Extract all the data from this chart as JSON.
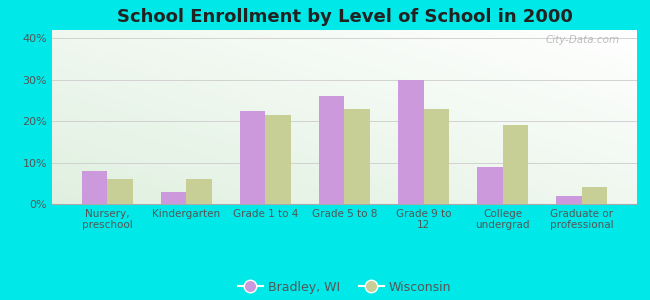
{
  "title": "School Enrollment by Level of School in 2000",
  "categories": [
    "Nursery,\npreschool",
    "Kindergarten",
    "Grade 1 to 4",
    "Grade 5 to 8",
    "Grade 9 to\n12",
    "College\nundergrad",
    "Graduate or\nprofessional"
  ],
  "bradley": [
    8.0,
    3.0,
    22.5,
    26.0,
    30.0,
    9.0,
    2.0
  ],
  "wisconsin": [
    6.0,
    6.0,
    21.5,
    23.0,
    23.0,
    19.0,
    4.0
  ],
  "bradley_color": "#cc99dd",
  "wisconsin_color": "#c8cf96",
  "background_color": "#00e8e8",
  "title_color": "#222222",
  "tick_color": "#555555",
  "grid_color": "#cccccc",
  "ylim": [
    0,
    42
  ],
  "yticks": [
    0,
    10,
    20,
    30,
    40
  ],
  "legend_labels": [
    "Bradley, WI",
    "Wisconsin"
  ],
  "watermark": "City-Data.com",
  "title_fontsize": 13,
  "label_fontsize": 7.5,
  "tick_fontsize": 8
}
